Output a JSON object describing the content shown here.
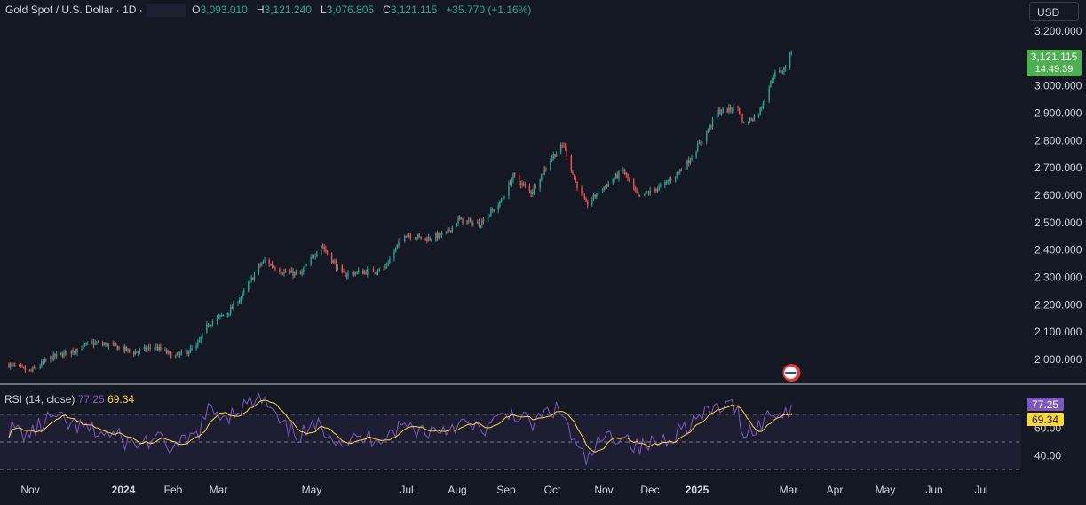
{
  "header": {
    "symbol": "Gold Spot / U.S. Dollar",
    "interval": "1D",
    "o_label": "O",
    "o_value": "3,093.010",
    "h_label": "H",
    "h_value": "3,121.240",
    "l_label": "L",
    "l_value": "3,076.805",
    "c_label": "C",
    "c_value": "3,121.115",
    "change": "+35.770 (+1.16%)"
  },
  "currency_button": "USD",
  "price_tag": {
    "value": "3,121.115",
    "countdown": "14:49:39",
    "color": "#4caf50"
  },
  "rsi_header": {
    "label": "RSI (14, close)",
    "rsi_value": "77.25",
    "ma_value": "69.34"
  },
  "rsi_tags": {
    "rsi": "77.25",
    "ma": "69.34"
  },
  "colors": {
    "up": "#26a69a",
    "down": "#ef5350",
    "rsi": "#7e57c2",
    "rsi_ma": "#fdd835",
    "bg": "#141823"
  },
  "chart_data": [
    {
      "type": "candlestick",
      "title": "Gold Spot / U.S. Dollar",
      "y_ticks": [
        "3,200.000",
        "3,100.000",
        "3,000.000",
        "2,900.000",
        "2,800.000",
        "2,700.000",
        "2,600.000",
        "2,500.000",
        "2,400.000",
        "2,300.000",
        "2,200.000",
        "2,100.000",
        "2,000.000"
      ],
      "x_ticks": [
        "Nov",
        "2024",
        "Feb",
        "Mar",
        "May",
        "Jul",
        "Aug",
        "Sep",
        "Oct",
        "Nov",
        "Dec",
        "2025",
        "Mar",
        "Apr",
        "May",
        "Jun",
        "Jul"
      ],
      "x_start": "2023-10-23",
      "close_series": [
        {
          "date": "2023-10-23",
          "close": 1982
        },
        {
          "date": "2023-11-06",
          "close": 1955
        },
        {
          "date": "2023-11-20",
          "close": 2005
        },
        {
          "date": "2023-12-04",
          "close": 2030
        },
        {
          "date": "2023-12-18",
          "close": 2060
        },
        {
          "date": "2024-01-01",
          "close": 2050
        },
        {
          "date": "2024-01-15",
          "close": 2025
        },
        {
          "date": "2024-01-29",
          "close": 2045
        },
        {
          "date": "2024-02-12",
          "close": 2010
        },
        {
          "date": "2024-02-26",
          "close": 2045
        },
        {
          "date": "2024-03-05",
          "close": 2130
        },
        {
          "date": "2024-03-19",
          "close": 2175
        },
        {
          "date": "2024-03-28",
          "close": 2235
        },
        {
          "date": "2024-04-08",
          "close": 2340
        },
        {
          "date": "2024-04-12",
          "close": 2360
        },
        {
          "date": "2024-04-24",
          "close": 2320
        },
        {
          "date": "2024-05-06",
          "close": 2310
        },
        {
          "date": "2024-05-20",
          "close": 2420
        },
        {
          "date": "2024-06-03",
          "close": 2310
        },
        {
          "date": "2024-06-17",
          "close": 2320
        },
        {
          "date": "2024-07-01",
          "close": 2330
        },
        {
          "date": "2024-07-15",
          "close": 2460
        },
        {
          "date": "2024-07-29",
          "close": 2440
        },
        {
          "date": "2024-08-12",
          "close": 2460
        },
        {
          "date": "2024-08-20",
          "close": 2510
        },
        {
          "date": "2024-09-03",
          "close": 2495
        },
        {
          "date": "2024-09-17",
          "close": 2570
        },
        {
          "date": "2024-09-26",
          "close": 2670
        },
        {
          "date": "2024-10-08",
          "close": 2610
        },
        {
          "date": "2024-10-22",
          "close": 2740
        },
        {
          "date": "2024-10-30",
          "close": 2785
        },
        {
          "date": "2024-11-06",
          "close": 2660
        },
        {
          "date": "2024-11-14",
          "close": 2565
        },
        {
          "date": "2024-11-25",
          "close": 2625
        },
        {
          "date": "2024-12-09",
          "close": 2690
        },
        {
          "date": "2024-12-19",
          "close": 2590
        },
        {
          "date": "2025-01-06",
          "close": 2640
        },
        {
          "date": "2025-01-20",
          "close": 2710
        },
        {
          "date": "2025-02-03",
          "close": 2830
        },
        {
          "date": "2025-02-11",
          "close": 2905
        },
        {
          "date": "2025-02-24",
          "close": 2920
        },
        {
          "date": "2025-02-28",
          "close": 2860
        },
        {
          "date": "2025-03-10",
          "close": 2900
        },
        {
          "date": "2025-03-20",
          "close": 3040
        },
        {
          "date": "2025-03-27",
          "close": 3060
        },
        {
          "date": "2025-04-01",
          "close": 3121
        }
      ]
    },
    {
      "type": "line",
      "title": "RSI (14, close)",
      "y_ticks": [
        "60.00",
        "40.00"
      ],
      "series": [
        {
          "name": "RSI",
          "last": 77.25,
          "color": "#7e57c2"
        },
        {
          "name": "RSI-based MA",
          "last": 69.34,
          "color": "#fdd835"
        }
      ],
      "levels": [
        70,
        50,
        30
      ],
      "rsi_points": [
        [
          "2023-10-23",
          60
        ],
        [
          "2023-11-06",
          55
        ],
        [
          "2023-11-20",
          68
        ],
        [
          "2023-12-04",
          62
        ],
        [
          "2023-12-18",
          58
        ],
        [
          "2024-01-01",
          55
        ],
        [
          "2024-01-15",
          48
        ],
        [
          "2024-01-29",
          52
        ],
        [
          "2024-02-12",
          45
        ],
        [
          "2024-02-26",
          55
        ],
        [
          "2024-03-05",
          72
        ],
        [
          "2024-03-19",
          70
        ],
        [
          "2024-03-28",
          76
        ],
        [
          "2024-04-08",
          80
        ],
        [
          "2024-04-12",
          79
        ],
        [
          "2024-04-24",
          60
        ],
        [
          "2024-05-06",
          55
        ],
        [
          "2024-05-20",
          62
        ],
        [
          "2024-06-03",
          50
        ],
        [
          "2024-06-17",
          52
        ],
        [
          "2024-07-01",
          55
        ],
        [
          "2024-07-15",
          62
        ],
        [
          "2024-07-29",
          58
        ],
        [
          "2024-08-12",
          60
        ],
        [
          "2024-08-20",
          64
        ],
        [
          "2024-09-03",
          58
        ],
        [
          "2024-09-17",
          66
        ],
        [
          "2024-09-26",
          72
        ],
        [
          "2024-10-08",
          62
        ],
        [
          "2024-10-22",
          74
        ],
        [
          "2024-10-30",
          70
        ],
        [
          "2024-11-06",
          48
        ],
        [
          "2024-11-14",
          36
        ],
        [
          "2024-11-25",
          52
        ],
        [
          "2024-12-09",
          56
        ],
        [
          "2024-12-19",
          45
        ],
        [
          "2025-01-06",
          52
        ],
        [
          "2025-01-20",
          62
        ],
        [
          "2025-02-03",
          70
        ],
        [
          "2025-02-11",
          76
        ],
        [
          "2025-02-24",
          74
        ],
        [
          "2025-02-28",
          56
        ],
        [
          "2025-03-10",
          62
        ],
        [
          "2025-03-20",
          72
        ],
        [
          "2025-03-27",
          70
        ],
        [
          "2025-04-01",
          77.25
        ]
      ]
    }
  ]
}
